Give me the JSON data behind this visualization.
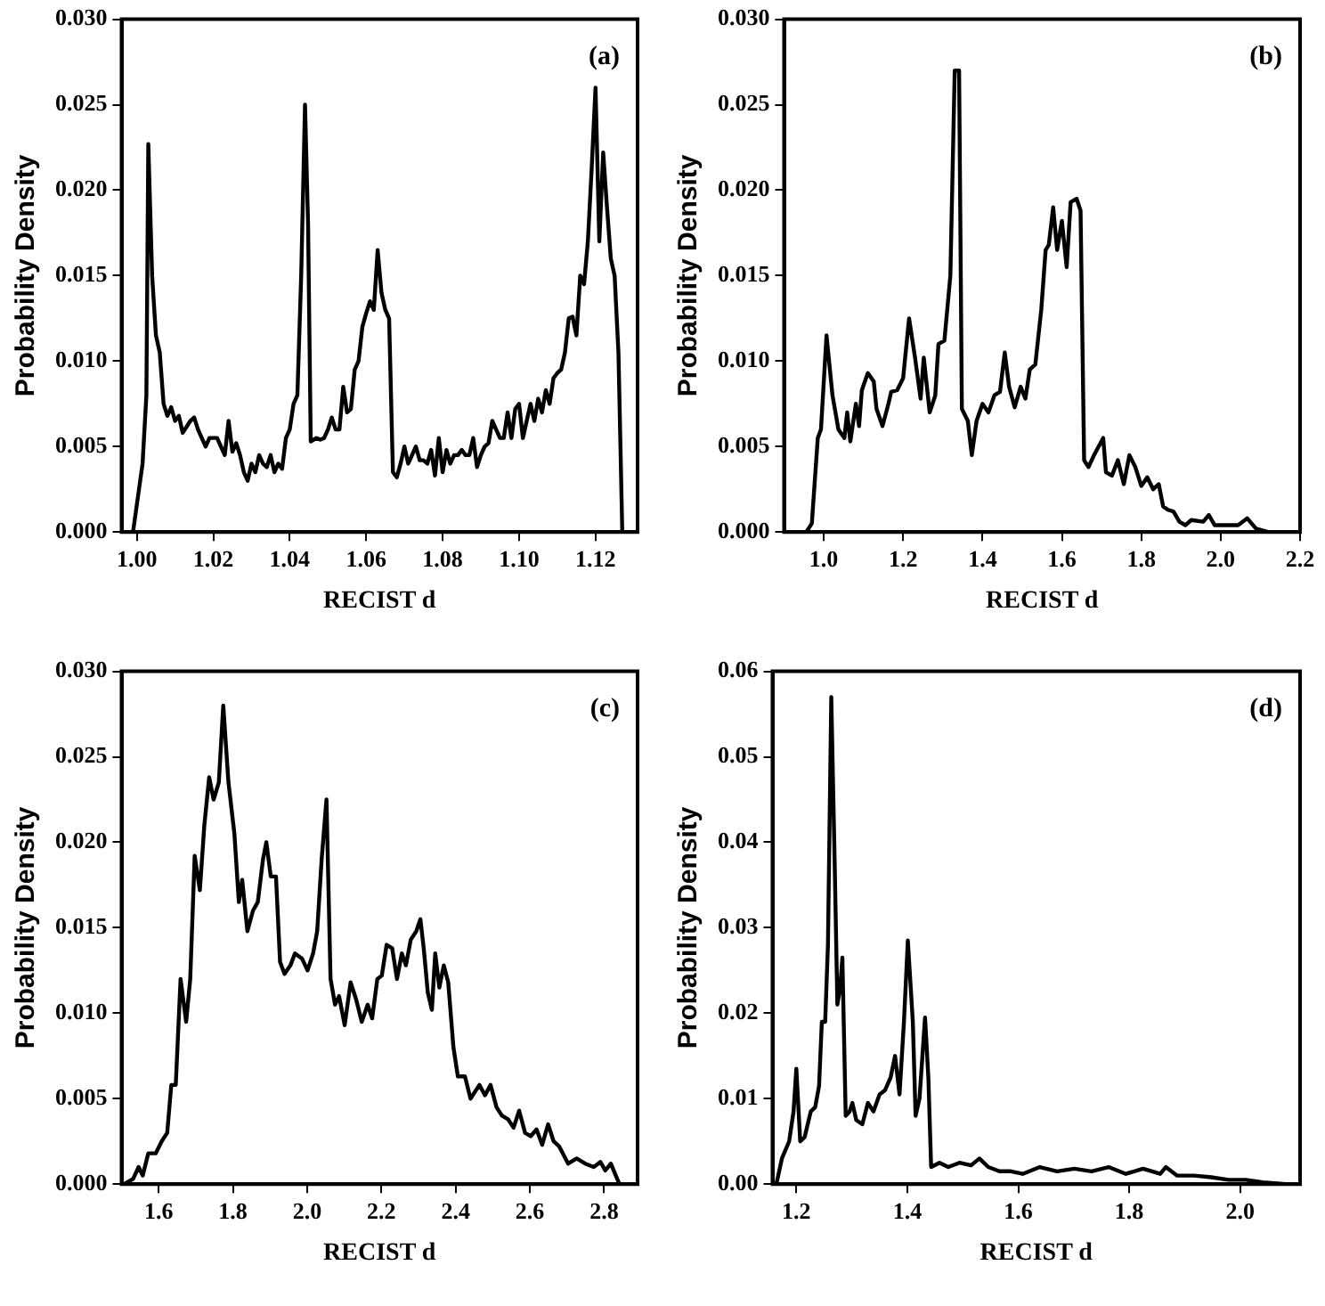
{
  "chart_data": [
    {
      "type": "line",
      "xlabel": "RECIST d",
      "ylabel": "Probability Density",
      "annotations": [
        "(a)"
      ],
      "xlim": [
        0.996,
        1.131
      ],
      "ylim": [
        0,
        0.03
      ],
      "xticks": [
        {
          "value": 1,
          "label": "1.00"
        },
        {
          "value": 1.02,
          "label": "1.02"
        },
        {
          "value": 1.04,
          "label": "1.04"
        },
        {
          "value": 1.06,
          "label": "1.06"
        },
        {
          "value": 1.08,
          "label": "1.08"
        },
        {
          "value": 1.1,
          "label": "1.10"
        },
        {
          "value": 1.12,
          "label": "1.12"
        }
      ],
      "yticks": [
        {
          "value": 0,
          "label": "0.000"
        },
        {
          "value": 0.005,
          "label": "0.005"
        },
        {
          "value": 0.01,
          "label": "0.010"
        },
        {
          "value": 0.015,
          "label": "0.015"
        },
        {
          "value": 0.02,
          "label": "0.020"
        },
        {
          "value": 0.025,
          "label": "0.025"
        },
        {
          "value": 0.03,
          "label": "0.030"
        }
      ],
      "grid": false,
      "legend": false,
      "marker": "none",
      "line_style": "solid",
      "series": [
        {
          "color": "#000000",
          "x": [
            0.999,
            1.0015,
            1.0025,
            1.003,
            1.004,
            1.005,
            1.006,
            1.007,
            1.008,
            1.009,
            1.01,
            1.011,
            1.012,
            1.014,
            1.015,
            1.016,
            1.018,
            1.019,
            1.021,
            1.022,
            1.023,
            1.024,
            1.025,
            1.026,
            1.027,
            1.028,
            1.029,
            1.03,
            1.031,
            1.032,
            1.033,
            1.034,
            1.035,
            1.036,
            1.037,
            1.038,
            1.039,
            1.04,
            1.041,
            1.042,
            1.043,
            1.044,
            1.0448,
            1.0455,
            1.047,
            1.048,
            1.049,
            1.05,
            1.051,
            1.052,
            1.053,
            1.054,
            1.055,
            1.056,
            1.057,
            1.058,
            1.059,
            1.06,
            1.061,
            1.062,
            1.063,
            1.064,
            1.065,
            1.066,
            1.067,
            1.068,
            1.069,
            1.07,
            1.071,
            1.072,
            1.073,
            1.074,
            1.075,
            1.076,
            1.077,
            1.078,
            1.079,
            1.08,
            1.081,
            1.082,
            1.083,
            1.084,
            1.085,
            1.086,
            1.087,
            1.088,
            1.089,
            1.09,
            1.091,
            1.092,
            1.093,
            1.094,
            1.095,
            1.096,
            1.097,
            1.098,
            1.099,
            1.1,
            1.101,
            1.102,
            1.103,
            1.104,
            1.105,
            1.106,
            1.107,
            1.108,
            1.109,
            1.11,
            1.111,
            1.112,
            1.113,
            1.114,
            1.115,
            1.116,
            1.117,
            1.118,
            1.119,
            1.12,
            1.121,
            1.122,
            1.123,
            1.124,
            1.125,
            1.126,
            1.127
          ],
          "values": [
            0,
            0.004,
            0.008,
            0.0227,
            0.015,
            0.0115,
            0.0105,
            0.0075,
            0.0068,
            0.0073,
            0.0065,
            0.0068,
            0.0058,
            0.0065,
            0.0067,
            0.006,
            0.005,
            0.0055,
            0.0055,
            0.005,
            0.0045,
            0.0065,
            0.0047,
            0.0052,
            0.0045,
            0.0035,
            0.003,
            0.004,
            0.0035,
            0.0045,
            0.004,
            0.0038,
            0.0045,
            0.0035,
            0.004,
            0.0037,
            0.0055,
            0.006,
            0.0075,
            0.008,
            0.015,
            0.025,
            0.018,
            0.0053,
            0.0055,
            0.0054,
            0.0055,
            0.006,
            0.0067,
            0.006,
            0.006,
            0.0085,
            0.007,
            0.0072,
            0.0095,
            0.01,
            0.012,
            0.0128,
            0.0135,
            0.013,
            0.0165,
            0.014,
            0.013,
            0.0125,
            0.0035,
            0.0032,
            0.004,
            0.005,
            0.004,
            0.0045,
            0.005,
            0.0042,
            0.0042,
            0.004,
            0.0048,
            0.0033,
            0.0055,
            0.0035,
            0.0048,
            0.004,
            0.0045,
            0.0045,
            0.0048,
            0.0045,
            0.0045,
            0.0055,
            0.0038,
            0.0045,
            0.005,
            0.0052,
            0.0065,
            0.006,
            0.0055,
            0.0055,
            0.007,
            0.0055,
            0.0072,
            0.0075,
            0.0055,
            0.0065,
            0.0075,
            0.0065,
            0.0078,
            0.007,
            0.0083,
            0.0075,
            0.009,
            0.0093,
            0.0095,
            0.0105,
            0.0125,
            0.0126,
            0.0115,
            0.015,
            0.0145,
            0.017,
            0.0213,
            0.026,
            0.017,
            0.0222,
            0.019,
            0.016,
            0.015,
            0.0105,
            0
          ]
        }
      ]
    },
    {
      "type": "line",
      "xlabel": "RECIST d",
      "ylabel": "Probability Density",
      "annotations": [
        "(b)"
      ],
      "xlim": [
        0.9,
        2.2
      ],
      "ylim": [
        0,
        0.03
      ],
      "xticks": [
        {
          "value": 1,
          "label": "1.0"
        },
        {
          "value": 1.2,
          "label": "1.2"
        },
        {
          "value": 1.4,
          "label": "1.4"
        },
        {
          "value": 1.6,
          "label": "1.6"
        },
        {
          "value": 1.8,
          "label": "1.8"
        },
        {
          "value": 2,
          "label": "2.0"
        },
        {
          "value": 2.2,
          "label": "2.2"
        }
      ],
      "yticks": [
        {
          "value": 0,
          "label": "0.000"
        },
        {
          "value": 0.005,
          "label": "0.005"
        },
        {
          "value": 0.01,
          "label": "0.010"
        },
        {
          "value": 0.015,
          "label": "0.015"
        },
        {
          "value": 0.02,
          "label": "0.020"
        },
        {
          "value": 0.025,
          "label": "0.025"
        },
        {
          "value": 0.03,
          "label": "0.030"
        }
      ],
      "grid": false,
      "legend": false,
      "marker": "none",
      "line_style": "solid",
      "series": [
        {
          "color": "#000000",
          "x": [
            0.956,
            0.97,
            0.985,
            0.993,
            1.007,
            1.022,
            1.037,
            1.052,
            1.059,
            1.067,
            1.081,
            1.089,
            1.096,
            1.111,
            1.126,
            1.133,
            1.148,
            1.163,
            1.17,
            1.185,
            1.2,
            1.215,
            1.23,
            1.244,
            1.252,
            1.267,
            1.281,
            1.289,
            1.304,
            1.319,
            1.33,
            1.341,
            1.348,
            1.363,
            1.373,
            1.385,
            1.4,
            1.415,
            1.43,
            1.444,
            1.456,
            1.467,
            1.481,
            1.496,
            1.508,
            1.519,
            1.533,
            1.548,
            1.559,
            1.567,
            1.578,
            1.588,
            1.6,
            1.612,
            1.622,
            1.637,
            1.647,
            1.656,
            1.667,
            1.681,
            1.704,
            1.711,
            1.726,
            1.741,
            1.756,
            1.77,
            1.785,
            1.8,
            1.815,
            1.83,
            1.844,
            1.855,
            1.867,
            1.881,
            1.896,
            1.911,
            1.926,
            1.956,
            1.97,
            1.985,
            2.015,
            2.044,
            2.067,
            2.089,
            2.119
          ],
          "values": [
            0,
            0.0005,
            0.0055,
            0.006,
            0.0115,
            0.008,
            0.006,
            0.0055,
            0.007,
            0.0053,
            0.0075,
            0.0062,
            0.0083,
            0.0093,
            0.0088,
            0.0072,
            0.0062,
            0.0075,
            0.0082,
            0.0083,
            0.009,
            0.0125,
            0.0102,
            0.0078,
            0.0102,
            0.007,
            0.008,
            0.011,
            0.0112,
            0.015,
            0.027,
            0.027,
            0.0072,
            0.0065,
            0.0045,
            0.0065,
            0.0075,
            0.007,
            0.008,
            0.0082,
            0.0105,
            0.0085,
            0.0073,
            0.0085,
            0.0078,
            0.0095,
            0.0098,
            0.013,
            0.0165,
            0.0168,
            0.019,
            0.0165,
            0.0182,
            0.0155,
            0.0193,
            0.0195,
            0.0188,
            0.0042,
            0.0038,
            0.0045,
            0.0055,
            0.0035,
            0.0033,
            0.0042,
            0.0028,
            0.0045,
            0.0038,
            0.0027,
            0.0032,
            0.0025,
            0.0028,
            0.0015,
            0.0013,
            0.0012,
            0.0006,
            0.0004,
            0.0007,
            0.0006,
            0.001,
            0.0004,
            0.0004,
            0.0004,
            0.0008,
            0.0002,
            0
          ]
        }
      ]
    },
    {
      "type": "line",
      "xlabel": "RECIST d",
      "ylabel": "Probability Density",
      "annotations": [
        "(c)"
      ],
      "xlim": [
        1.5,
        2.89
      ],
      "ylim": [
        0,
        0.03
      ],
      "xticks": [
        {
          "value": 1.6,
          "label": "1.6"
        },
        {
          "value": 1.8,
          "label": "1.8"
        },
        {
          "value": 2,
          "label": "2.0"
        },
        {
          "value": 2.2,
          "label": "2.2"
        },
        {
          "value": 2.4,
          "label": "2.4"
        },
        {
          "value": 2.6,
          "label": "2.6"
        },
        {
          "value": 2.8,
          "label": "2.8"
        }
      ],
      "yticks": [
        {
          "value": 0,
          "label": "0.000"
        },
        {
          "value": 0.005,
          "label": "0.005"
        },
        {
          "value": 0.01,
          "label": "0.010"
        },
        {
          "value": 0.015,
          "label": "0.015"
        },
        {
          "value": 0.02,
          "label": "0.020"
        },
        {
          "value": 0.025,
          "label": "0.025"
        },
        {
          "value": 0.03,
          "label": "0.030"
        }
      ],
      "grid": false,
      "legend": false,
      "marker": "none",
      "line_style": "solid",
      "series": [
        {
          "color": "#000000",
          "x": [
            1.507,
            1.531,
            1.546,
            1.557,
            1.572,
            1.592,
            1.608,
            1.623,
            1.634,
            1.646,
            1.659,
            1.674,
            1.685,
            1.697,
            1.711,
            1.723,
            1.736,
            1.748,
            1.762,
            1.774,
            1.788,
            1.804,
            1.816,
            1.825,
            1.839,
            1.854,
            1.867,
            1.881,
            1.89,
            1.902,
            1.916,
            1.927,
            1.939,
            1.955,
            1.967,
            1.986,
            2.001,
            2.016,
            2.027,
            2.039,
            2.052,
            2.063,
            2.075,
            2.086,
            2.101,
            2.117,
            2.132,
            2.147,
            2.163,
            2.175,
            2.189,
            2.201,
            2.214,
            2.229,
            2.242,
            2.255,
            2.266,
            2.279,
            2.294,
            2.305,
            2.314,
            2.325,
            2.336,
            2.345,
            2.356,
            2.368,
            2.38,
            2.394,
            2.406,
            2.425,
            2.44,
            2.464,
            2.479,
            2.494,
            2.51,
            2.525,
            2.541,
            2.556,
            2.571,
            2.587,
            2.602,
            2.618,
            2.633,
            2.649,
            2.664,
            2.679,
            2.703,
            2.726,
            2.749,
            2.772,
            2.79,
            2.803,
            2.818,
            2.841
          ],
          "values": [
            0,
            0.0003,
            0.001,
            0.0005,
            0.0018,
            0.0018,
            0.0025,
            0.003,
            0.0058,
            0.0058,
            0.012,
            0.0095,
            0.012,
            0.0192,
            0.0172,
            0.021,
            0.0238,
            0.0225,
            0.0235,
            0.028,
            0.0235,
            0.0205,
            0.0165,
            0.0178,
            0.0148,
            0.016,
            0.0165,
            0.019,
            0.02,
            0.018,
            0.018,
            0.013,
            0.0123,
            0.0128,
            0.0135,
            0.0132,
            0.0125,
            0.0135,
            0.0148,
            0.019,
            0.0225,
            0.012,
            0.0105,
            0.011,
            0.0093,
            0.0118,
            0.0108,
            0.0095,
            0.0105,
            0.0097,
            0.012,
            0.0122,
            0.014,
            0.0138,
            0.012,
            0.0135,
            0.0128,
            0.0143,
            0.0148,
            0.0155,
            0.0138,
            0.0112,
            0.0102,
            0.0135,
            0.0115,
            0.0128,
            0.0118,
            0.008,
            0.0063,
            0.0063,
            0.005,
            0.0058,
            0.0052,
            0.0058,
            0.0045,
            0.004,
            0.0038,
            0.0033,
            0.0043,
            0.003,
            0.0028,
            0.0032,
            0.0023,
            0.0035,
            0.0025,
            0.0022,
            0.0012,
            0.0015,
            0.0012,
            0.001,
            0.0013,
            0.0008,
            0.0012,
            0
          ]
        }
      ]
    },
    {
      "type": "line",
      "xlabel": "RECIST d",
      "ylabel": "Probability Density",
      "annotations": [
        "(d)"
      ],
      "xlim": [
        1.157,
        2.108
      ],
      "ylim": [
        0,
        0.06
      ],
      "xticks": [
        {
          "value": 1.2,
          "label": "1.2"
        },
        {
          "value": 1.4,
          "label": "1.4"
        },
        {
          "value": 1.6,
          "label": "1.6"
        },
        {
          "value": 1.8,
          "label": "1.8"
        },
        {
          "value": 2,
          "label": "2.0"
        }
      ],
      "yticks": [
        {
          "value": 0,
          "label": "0.00"
        },
        {
          "value": 0.01,
          "label": "0.01"
        },
        {
          "value": 0.02,
          "label": "0.02"
        },
        {
          "value": 0.03,
          "label": "0.03"
        },
        {
          "value": 0.04,
          "label": "0.04"
        },
        {
          "value": 0.05,
          "label": "0.05"
        },
        {
          "value": 0.06,
          "label": "0.06"
        }
      ],
      "grid": false,
      "legend": false,
      "marker": "none",
      "line_style": "solid",
      "series": [
        {
          "color": "#000000",
          "x": [
            1.164,
            1.174,
            1.187,
            1.195,
            1.2,
            1.207,
            1.215,
            1.226,
            1.234,
            1.241,
            1.246,
            1.252,
            1.257,
            1.263,
            1.269,
            1.274,
            1.279,
            1.283,
            1.289,
            1.296,
            1.301,
            1.308,
            1.319,
            1.329,
            1.339,
            1.35,
            1.36,
            1.37,
            1.378,
            1.386,
            1.394,
            1.401,
            1.41,
            1.415,
            1.422,
            1.432,
            1.438,
            1.443,
            1.458,
            1.474,
            1.494,
            1.515,
            1.53,
            1.546,
            1.566,
            1.587,
            1.608,
            1.639,
            1.67,
            1.701,
            1.732,
            1.763,
            1.794,
            1.825,
            1.856,
            1.866,
            1.886,
            1.917,
            1.948,
            1.979,
            2.01,
            2.041,
            2.083
          ],
          "values": [
            0,
            0.003,
            0.005,
            0.0085,
            0.0135,
            0.005,
            0.0055,
            0.0085,
            0.009,
            0.0115,
            0.019,
            0.019,
            0.028,
            0.057,
            0.038,
            0.021,
            0.023,
            0.0265,
            0.008,
            0.0085,
            0.0095,
            0.0075,
            0.007,
            0.0095,
            0.0085,
            0.0105,
            0.011,
            0.0125,
            0.015,
            0.0105,
            0.019,
            0.0285,
            0.019,
            0.008,
            0.01,
            0.0195,
            0.0125,
            0.002,
            0.0025,
            0.002,
            0.0025,
            0.0022,
            0.003,
            0.002,
            0.0015,
            0.0015,
            0.0012,
            0.002,
            0.0015,
            0.0018,
            0.0015,
            0.002,
            0.0012,
            0.0018,
            0.0012,
            0.002,
            0.001,
            0.001,
            0.0008,
            0.0005,
            0.0005,
            0.0002,
            0
          ]
        }
      ]
    }
  ]
}
